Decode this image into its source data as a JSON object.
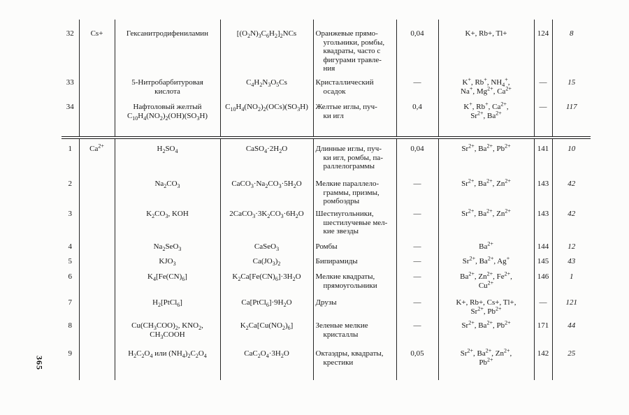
{
  "page": {
    "side_page_number": "365"
  },
  "table": {
    "sections": [
      {
        "ion": "Cs+",
        "rows": [
          {
            "num": "32",
            "reagent": "Гексанитродифениламин",
            "formula": "[(O_{2}N)_{3}C_{6}H_{2}]_{2}NCs",
            "crystals": "Оранжевые прямо-\nугольники, ромбы,\nквадраты, часто с\nфигурами травле-\nния",
            "conc": "0,04",
            "ions": "K+, Rb+, Tl+",
            "page_ref": "124",
            "lit_ref": "8"
          },
          {
            "num": "33",
            "reagent": "5-Нитробарбитуровая\nкислота",
            "formula": "C_{4}H_{2}N_{3}O_{5}Cs",
            "crystals": "Кристаллический\nосадок",
            "conc": "—",
            "ions": "K^{+}, Rb^{+}, NH_{4}^{+},\nNa^{+}, Mg^{2+}, Ca^{2+}",
            "page_ref": "—",
            "lit_ref": "15"
          },
          {
            "num": "34",
            "reagent": "Нафтоловый желтый\nC_{10}H_{4}(NO_{2})_{2}(OH)(SO_{3}H)",
            "formula": "C_{10}H_{4}(NO_{2})_{2}(OCs)(SO_{3}H)",
            "crystals": "Желтые иглы, пуч-\nки игл",
            "conc": "0,4",
            "ions": "K^{+}, Rb^{+}, Ca^{2+},\nSr^{2+}, Ba^{2+}",
            "page_ref": "—",
            "lit_ref": "117"
          }
        ]
      },
      {
        "ion": "Ca^{2+}",
        "rows": [
          {
            "num": "1",
            "reagent": "H_{2}SO_{4}",
            "formula": "CaSO_{4}·2H_{2}O",
            "crystals": "Длинные иглы, пуч-\nки игл, ромбы, па-\nраллелограммы",
            "conc": "0,04",
            "ions": "Sr^{2+}, Ba^{2+}, Pb^{2+}",
            "page_ref": "141",
            "lit_ref": "10"
          },
          {
            "num": "2",
            "reagent": "Na_{2}CO_{3}",
            "formula": "CaCO_{3}·Na_{2}CO_{3}·5H_{2}O",
            "crystals": "Мелкие параллело-\nграммы, призмы,\nромбоэдры",
            "conc": "—",
            "ions": "Sr^{2+}, Ba^{2+}, Zn^{2+}",
            "page_ref": "143",
            "lit_ref": "42"
          },
          {
            "num": "3",
            "reagent": "K_{2}CO_{3},  KOH",
            "formula": "2CaCO_{3}·3K_{2}CO_{3}·6H_{2}O",
            "crystals": "Шестиугольники,\nшестилучевые мел-\nкие звезды",
            "conc": "—",
            "ions": "Sr^{2+}, Ba^{2+}, Zn^{2+}",
            "page_ref": "143",
            "lit_ref": "42"
          },
          {
            "num": "4",
            "reagent": "Na_{2}SeO_{3}",
            "formula": "CaSeO_{3}",
            "crystals": "Ромбы",
            "conc": "—",
            "ions": "Ba^{2+}",
            "page_ref": "144",
            "lit_ref": "12"
          },
          {
            "num": "5",
            "reagent": "KJO_{3}",
            "formula": "Ca(JO_{3})_{2}",
            "crystals": "Бипирамиды",
            "conc": "—",
            "ions": "Sr^{2+}, Ba^{2+}, Ag^{+}",
            "page_ref": "145",
            "lit_ref": "43"
          },
          {
            "num": "6",
            "reagent": "K_{4}[Fe(CN)_{6}]",
            "formula": "K_{2}Ca[Fe(CN)_{6}]·3H_{2}O",
            "crystals": "Мелкие квадраты,\nпрямоугольники",
            "conc": "—",
            "ions": "Ba^{2+}, Zn^{2+}, Fe^{2+},\nCu^{2+}",
            "page_ref": "146",
            "lit_ref": "1"
          },
          {
            "num": "7",
            "reagent": "H_{2}[PtCl_{6}]",
            "formula": "Ca[PtCl_{6}]·9H_{2}O",
            "crystals": "Друзы",
            "conc": "—",
            "ions": "K+, Rb+, Cs+, Tl+,\nSr^{2+}, Pb^{2+}",
            "page_ref": "—",
            "lit_ref": "121"
          },
          {
            "num": "8",
            "reagent": "Cu(CH_{3}COO)_{2},  KNO_{2},\nCH_{3}COOH",
            "formula": "K_{2}Ca[Cu(NO_{2})_{6}]",
            "crystals": "Зеленые мелкие\nкристаллы",
            "conc": "—",
            "ions": "Sr^{2+}, Ba^{2+}, Pb^{2+}",
            "page_ref": "171",
            "lit_ref": "44"
          },
          {
            "num": "9",
            "reagent": "H_{2}C_{2}O_{4} или (NH_{4})_{2}C_{2}O_{4}",
            "formula": "CaC_{2}O_{4}·3H_{2}O",
            "crystals": "Октаэдры, квадраты,\nкрестики",
            "conc": "0,05",
            "ions": "Sr^{2+}, Ba^{2+}, Zn^{2+},\nPb^{2+}",
            "page_ref": "142",
            "lit_ref": "25"
          }
        ]
      }
    ]
  }
}
